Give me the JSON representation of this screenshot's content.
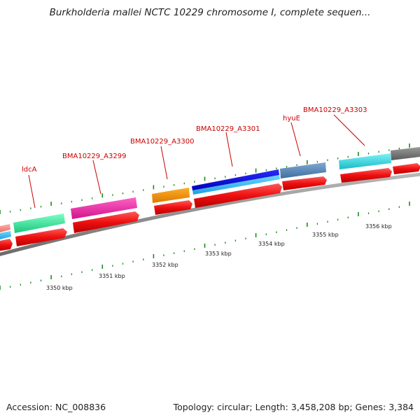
{
  "header": {
    "title": "Burkholderia mallei NCTC 10229 chromosome I, complete sequen..."
  },
  "footer": {
    "accession": "Accession: NC_008836",
    "stats": "Topology: circular; Length: 3,458,208 bp; Genes: 3,384"
  },
  "gene_labels": [
    {
      "name": "ldcA"
    },
    {
      "name": "BMA10229_A3299"
    },
    {
      "name": "BMA10229_A3300"
    },
    {
      "name": "BMA10229_A3301"
    },
    {
      "name": "hyuE"
    },
    {
      "name": "BMA10229_A3303"
    }
  ],
  "scale_labels": [
    {
      "text": "3350 kbp"
    },
    {
      "text": "3351 kbp"
    },
    {
      "text": "3352 kbp"
    },
    {
      "text": "3353 kbp"
    },
    {
      "text": "3354 kbp"
    },
    {
      "text": "3355 kbp"
    },
    {
      "text": "3356 kbp"
    }
  ],
  "colors": {
    "label_red": "#cc0000",
    "arrow_red": "#ee1111",
    "backbone": "#8c8c8c",
    "tick_green": "#1f8a1f"
  }
}
